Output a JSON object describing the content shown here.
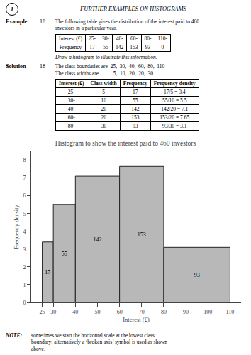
{
  "page": {
    "page_number": "1",
    "page_title": "FURTHER EXAMPLES ON HISTOGRAMS",
    "example_label": "Example",
    "example_number": "18",
    "example_text": [
      "The following table gives the distribution of the interest paid to 460",
      "investors in a particular year."
    ],
    "table1": {
      "headers": [
        "Interest (£)",
        "25-",
        "30-",
        "40-",
        "60-",
        "80-",
        "110-"
      ],
      "rows": [
        [
          "Frequency",
          "17",
          "55",
          "142",
          "153",
          "93",
          "0"
        ]
      ]
    },
    "instruction": "Draw a histogram to illustrate this information.",
    "solution_label": "Solution",
    "solution_number": "18",
    "solution_text": [
      "The class boundaries are  25,  30,  40,  60,  80,  110",
      "The class widths are           5,  10,  20,  20,  30"
    ],
    "table2": {
      "headers": [
        "Interest (£)",
        "Class width",
        "Frequency",
        "Frequency density"
      ],
      "rows": [
        [
          "25-",
          "5",
          "17",
          "17/5 = 3.4"
        ],
        [
          "30-",
          "10",
          "55",
          "55/10 = 5.5"
        ],
        [
          "40-",
          "20",
          "142",
          "142/20 = 7.1"
        ],
        [
          "60-",
          "20",
          "153",
          "153/20 = 7.65"
        ],
        [
          "80-",
          "30",
          "93",
          "93/30 = 3.1"
        ]
      ]
    },
    "note_label": "NOTE:",
    "note_text": "sometimes we start the horizontal scale at the lowest class\nboundary; alternatively a ‘broken axis’ symbol is used as shown\nabove."
  },
  "chart_data": {
    "type": "histogram",
    "title": "Histogram to show the interest paid to 460 investors",
    "x_label": "Interest (£)",
    "y_label": "Frequency density",
    "bins": [
      25,
      30,
      40,
      60,
      80,
      110
    ],
    "values": [
      3.4,
      5.5,
      7.1,
      7.65,
      3.1
    ],
    "frequencies": [
      17,
      55,
      142,
      153,
      93
    ],
    "color": "#b8b8b8",
    "xlim": [
      20,
      115
    ],
    "ylim": [
      0,
      8.5
    ],
    "xticks": [
      25,
      30,
      40,
      50,
      60,
      70,
      80,
      90,
      100,
      110
    ],
    "yticks": [
      0,
      1,
      2,
      3,
      4,
      5,
      6,
      7,
      8
    ],
    "grid": false
  }
}
